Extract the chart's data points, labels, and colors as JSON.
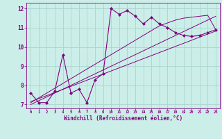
{
  "xlabel": "Windchill (Refroidissement éolien,°C)",
  "x_values": [
    0,
    1,
    2,
    3,
    4,
    5,
    6,
    7,
    8,
    9,
    10,
    11,
    12,
    13,
    14,
    15,
    16,
    17,
    18,
    19,
    20,
    21,
    22,
    23
  ],
  "main_y": [
    7.6,
    7.1,
    7.1,
    7.7,
    9.6,
    7.6,
    7.8,
    7.1,
    8.3,
    8.6,
    12.0,
    11.7,
    11.9,
    11.6,
    11.2,
    11.55,
    11.2,
    11.0,
    10.75,
    10.6,
    10.55,
    10.6,
    10.75,
    10.9
  ],
  "reg1_y": [
    7.1,
    7.35,
    7.6,
    7.85,
    8.1,
    8.35,
    8.6,
    8.85,
    9.1,
    9.35,
    9.6,
    9.85,
    10.1,
    10.35,
    10.6,
    10.85,
    11.1,
    11.25,
    11.4,
    11.5,
    11.55,
    11.6,
    11.65,
    10.9
  ],
  "reg2_y": [
    7.0,
    7.2,
    7.4,
    7.6,
    7.8,
    8.0,
    8.2,
    8.4,
    8.6,
    8.8,
    9.0,
    9.2,
    9.4,
    9.6,
    9.8,
    10.0,
    10.2,
    10.4,
    10.6,
    10.8,
    11.0,
    11.2,
    11.4,
    11.6
  ],
  "reg3_y": [
    7.15,
    7.31,
    7.47,
    7.63,
    7.79,
    7.95,
    8.11,
    8.27,
    8.43,
    8.59,
    8.75,
    8.91,
    9.07,
    9.23,
    9.39,
    9.55,
    9.71,
    9.87,
    10.03,
    10.19,
    10.35,
    10.51,
    10.67,
    10.83
  ],
  "line_color": "#800080",
  "bg_color": "#cceee8",
  "grid_color": "#aad4ce",
  "ylim": [
    6.8,
    12.3
  ],
  "yticks": [
    7,
    8,
    9,
    10,
    11,
    12
  ],
  "xlim": [
    -0.5,
    23.5
  ]
}
